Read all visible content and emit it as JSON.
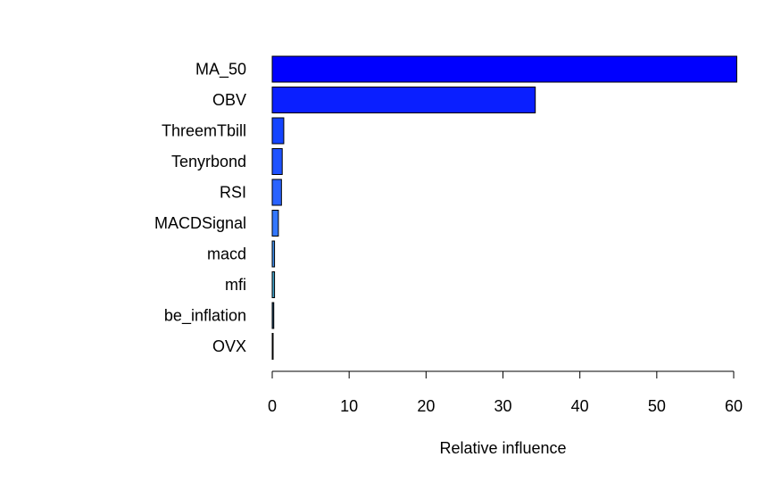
{
  "chart_data": {
    "type": "bar",
    "orientation": "horizontal",
    "title": "",
    "xlabel": "Relative influence",
    "ylabel": "",
    "xlim": [
      0,
      60
    ],
    "xticks": [
      0,
      10,
      20,
      30,
      40,
      50,
      60
    ],
    "grid": false,
    "categories": [
      "MA_50",
      "OBV",
      "ThreemTbill",
      "Tenyrbond",
      "RSI",
      "MACDSignal",
      "macd",
      "mfi",
      "be_inflation",
      "OVX"
    ],
    "values": [
      60.4,
      34.2,
      1.5,
      1.3,
      1.2,
      0.8,
      0.3,
      0.3,
      0.2,
      0.1
    ],
    "colors": [
      "#0000FF",
      "#0A1FFF",
      "#1444FF",
      "#1E52FF",
      "#2A63FF",
      "#3377FF",
      "#3E8CE8",
      "#3FA0C8",
      "#1E4A6E",
      "#000000"
    ]
  }
}
